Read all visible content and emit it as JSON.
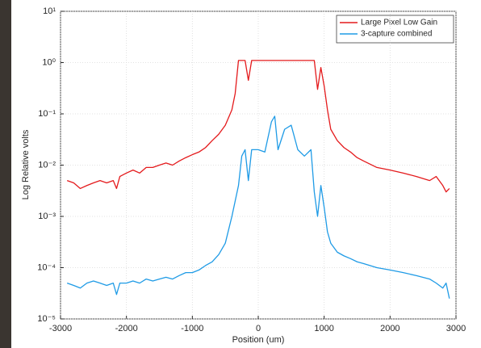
{
  "chart_data": {
    "type": "line",
    "xlabel": "Position (um)",
    "ylabel": "Log Relative volts",
    "log_y": true,
    "grid": true,
    "legend": "top-right",
    "xlim": [
      -3000,
      3000
    ],
    "xticks": [
      -3000,
      -2000,
      -1000,
      0,
      1000,
      2000,
      3000
    ],
    "ylim": [
      1e-05,
      10
    ],
    "yticks": [
      {
        "value": 1e-05,
        "label": "10⁻⁵"
      },
      {
        "value": 0.0001,
        "label": "10⁻⁴"
      },
      {
        "value": 0.001,
        "label": "10⁻³"
      },
      {
        "value": 0.01,
        "label": "10⁻²"
      },
      {
        "value": 0.1,
        "label": "10⁻¹"
      },
      {
        "value": 1,
        "label": "10⁰"
      },
      {
        "value": 10,
        "label": "10¹"
      }
    ],
    "x": [
      -2900,
      -2800,
      -2700,
      -2600,
      -2500,
      -2400,
      -2300,
      -2200,
      -2150,
      -2100,
      -2000,
      -1900,
      -1800,
      -1700,
      -1600,
      -1500,
      -1400,
      -1300,
      -1200,
      -1100,
      -1000,
      -900,
      -800,
      -700,
      -600,
      -500,
      -400,
      -350,
      -300,
      -250,
      -200,
      -150,
      -100,
      0,
      100,
      200,
      250,
      300,
      400,
      500,
      600,
      700,
      800,
      850,
      900,
      950,
      1000,
      1050,
      1100,
      1200,
      1300,
      1400,
      1500,
      1600,
      1800,
      2000,
      2200,
      2400,
      2600,
      2700,
      2800,
      2850,
      2900
    ],
    "series": [
      {
        "name": "Large Pixel Low Gain",
        "color": "#e41a1c",
        "values": [
          0.005,
          0.0045,
          0.0035,
          0.004,
          0.0045,
          0.005,
          0.0045,
          0.005,
          0.0035,
          0.006,
          0.007,
          0.008,
          0.007,
          0.009,
          0.009,
          0.01,
          0.011,
          0.01,
          0.012,
          0.014,
          0.016,
          0.018,
          0.022,
          0.03,
          0.04,
          0.06,
          0.12,
          0.25,
          1.1,
          1.1,
          1.1,
          0.45,
          1.1,
          1.1,
          1.1,
          1.1,
          1.1,
          1.1,
          1.1,
          1.1,
          1.1,
          1.1,
          1.1,
          1.1,
          0.3,
          0.8,
          0.35,
          0.12,
          0.05,
          0.03,
          0.022,
          0.018,
          0.014,
          0.012,
          0.009,
          0.008,
          0.007,
          0.006,
          0.005,
          0.006,
          0.004,
          0.003,
          0.0035
        ]
      },
      {
        "name": "3-capture combined",
        "color": "#1f9be6",
        "values": [
          5e-05,
          4.5e-05,
          4e-05,
          5e-05,
          5.5e-05,
          5e-05,
          4.5e-05,
          5e-05,
          3e-05,
          5e-05,
          5e-05,
          5.5e-05,
          5e-05,
          6e-05,
          5.5e-05,
          6e-05,
          6.5e-05,
          6e-05,
          7e-05,
          8e-05,
          8e-05,
          9e-05,
          0.00011,
          0.00013,
          0.00018,
          0.0003,
          0.001,
          0.002,
          0.004,
          0.015,
          0.02,
          0.005,
          0.02,
          0.02,
          0.018,
          0.07,
          0.09,
          0.02,
          0.05,
          0.06,
          0.02,
          0.015,
          0.02,
          0.003,
          0.001,
          0.004,
          0.0015,
          0.0005,
          0.0003,
          0.0002,
          0.00017,
          0.00015,
          0.00013,
          0.00012,
          0.0001,
          9e-05,
          8e-05,
          7e-05,
          6e-05,
          5e-05,
          4e-05,
          5e-05,
          2.5e-05
        ]
      }
    ]
  }
}
